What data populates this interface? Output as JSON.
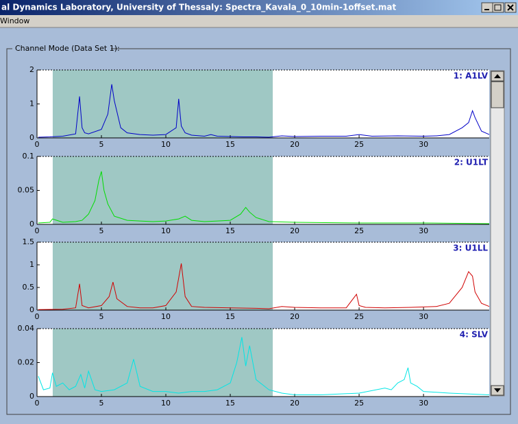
{
  "window_title": "al Dynamics Laboratory, University of Thessaly: Spectra_Kavala_0_10min-1offset.mat",
  "menu": [
    "Window"
  ],
  "panel_title": "Channel Mode (Data Set 1):",
  "chart_data": [
    {
      "type": "line",
      "xlim": [
        0,
        35.1
      ],
      "ylim": [
        0,
        2
      ],
      "xticks": [
        0,
        5,
        10,
        15,
        20,
        25,
        30
      ],
      "yticks": [
        0,
        1,
        2
      ],
      "highlight": [
        1.22,
        18.3
      ],
      "x": [
        0.1,
        1,
        2,
        3,
        3.3,
        3.5,
        3.7,
        4,
        5,
        5.5,
        5.8,
        6,
        6.5,
        7,
        8,
        9,
        10,
        10.8,
        11,
        11.2,
        11.5,
        12,
        13,
        13.5,
        14,
        15,
        16,
        17,
        18,
        19,
        20,
        22,
        24,
        25,
        26,
        28,
        30,
        31,
        32,
        33,
        33.5,
        33.8,
        34,
        34.5,
        35.1
      ],
      "series": [
        {
          "name": "1: A1LV",
          "color": "#0000c8",
          "values": [
            0.02,
            0.03,
            0.05,
            0.12,
            1.22,
            0.3,
            0.15,
            0.12,
            0.25,
            0.7,
            1.58,
            1.1,
            0.3,
            0.15,
            0.1,
            0.08,
            0.1,
            0.3,
            1.15,
            0.35,
            0.15,
            0.08,
            0.05,
            0.1,
            0.05,
            0.04,
            0.03,
            0.03,
            0.02,
            0.06,
            0.04,
            0.05,
            0.05,
            0.1,
            0.05,
            0.06,
            0.05,
            0.06,
            0.1,
            0.3,
            0.45,
            0.8,
            0.6,
            0.2,
            0.1
          ]
        }
      ]
    },
    {
      "type": "line",
      "xlim": [
        0,
        35.1
      ],
      "ylim": [
        0,
        0.1
      ],
      "xticks": [
        0,
        5,
        10,
        15,
        20,
        25,
        30
      ],
      "yticks": [
        0,
        0.05,
        0.1
      ],
      "highlight": [
        1.22,
        18.3
      ],
      "x": [
        0.1,
        1,
        1.2,
        2,
        3,
        3.5,
        4,
        4.5,
        4.8,
        5,
        5.2,
        5.5,
        6,
        7,
        8,
        9,
        10,
        11,
        11.5,
        12,
        13,
        14,
        15,
        15.8,
        16.2,
        16.5,
        17,
        18,
        20,
        25,
        30,
        35.1
      ],
      "series": [
        {
          "name": "2: U1LT",
          "color": "#00dd00",
          "values": [
            0.002,
            0.003,
            0.008,
            0.003,
            0.004,
            0.006,
            0.015,
            0.035,
            0.065,
            0.078,
            0.05,
            0.03,
            0.012,
            0.006,
            0.005,
            0.004,
            0.005,
            0.008,
            0.012,
            0.006,
            0.004,
            0.005,
            0.006,
            0.015,
            0.025,
            0.018,
            0.01,
            0.004,
            0.003,
            0.002,
            0.002,
            0.001
          ]
        }
      ]
    },
    {
      "type": "line",
      "xlim": [
        0,
        35.1
      ],
      "ylim": [
        0,
        1.5
      ],
      "xticks": [
        0,
        5,
        10,
        15,
        20,
        25,
        30
      ],
      "yticks": [
        0,
        0.5,
        1,
        1.5
      ],
      "highlight": [
        1.22,
        18.3
      ],
      "x": [
        0.1,
        2,
        3,
        3.3,
        3.5,
        4,
        5,
        5.6,
        5.9,
        6.2,
        7,
        8,
        9,
        10,
        10.8,
        11.2,
        11.5,
        12,
        13,
        15,
        17,
        18,
        19,
        20,
        22,
        24,
        24.8,
        25,
        25.5,
        27,
        29,
        31,
        32,
        33,
        33.5,
        33.8,
        34,
        34.5,
        35.1
      ],
      "series": [
        {
          "name": "3: U1LL",
          "color": "#d00000",
          "values": [
            0.01,
            0.02,
            0.05,
            0.58,
            0.1,
            0.05,
            0.1,
            0.3,
            0.62,
            0.25,
            0.08,
            0.05,
            0.05,
            0.1,
            0.4,
            1.03,
            0.3,
            0.08,
            0.06,
            0.05,
            0.04,
            0.03,
            0.08,
            0.06,
            0.05,
            0.05,
            0.35,
            0.1,
            0.06,
            0.05,
            0.06,
            0.08,
            0.15,
            0.5,
            0.85,
            0.75,
            0.4,
            0.15,
            0.08
          ]
        }
      ]
    },
    {
      "type": "line",
      "xlim": [
        0,
        35.1
      ],
      "ylim": [
        0,
        0.04
      ],
      "xticks": [
        0,
        5,
        10,
        15,
        20,
        25,
        30
      ],
      "yticks": [
        0,
        0.02,
        0.04
      ],
      "highlight": [
        1.22,
        18.3
      ],
      "x": [
        0.1,
        0.5,
        1,
        1.2,
        1.5,
        2,
        2.5,
        3,
        3.4,
        3.7,
        4,
        4.5,
        5,
        6,
        7,
        7.5,
        8,
        9,
        10,
        11,
        12,
        13,
        14,
        15,
        15.5,
        15.9,
        16.2,
        16.5,
        17,
        18,
        19,
        20,
        22,
        25,
        27,
        27.5,
        28,
        28.5,
        28.8,
        29,
        29.5,
        30,
        32,
        35.1
      ],
      "series": [
        {
          "name": "4: SLV",
          "color": "#00e5e5",
          "values": [
            0.012,
            0.004,
            0.005,
            0.014,
            0.006,
            0.008,
            0.004,
            0.006,
            0.013,
            0.005,
            0.015,
            0.004,
            0.003,
            0.004,
            0.008,
            0.022,
            0.006,
            0.003,
            0.003,
            0.002,
            0.003,
            0.003,
            0.004,
            0.008,
            0.02,
            0.035,
            0.018,
            0.03,
            0.01,
            0.004,
            0.002,
            0.001,
            0.001,
            0.002,
            0.005,
            0.004,
            0.008,
            0.01,
            0.017,
            0.008,
            0.006,
            0.003,
            0.002,
            0.001
          ]
        }
      ]
    }
  ]
}
